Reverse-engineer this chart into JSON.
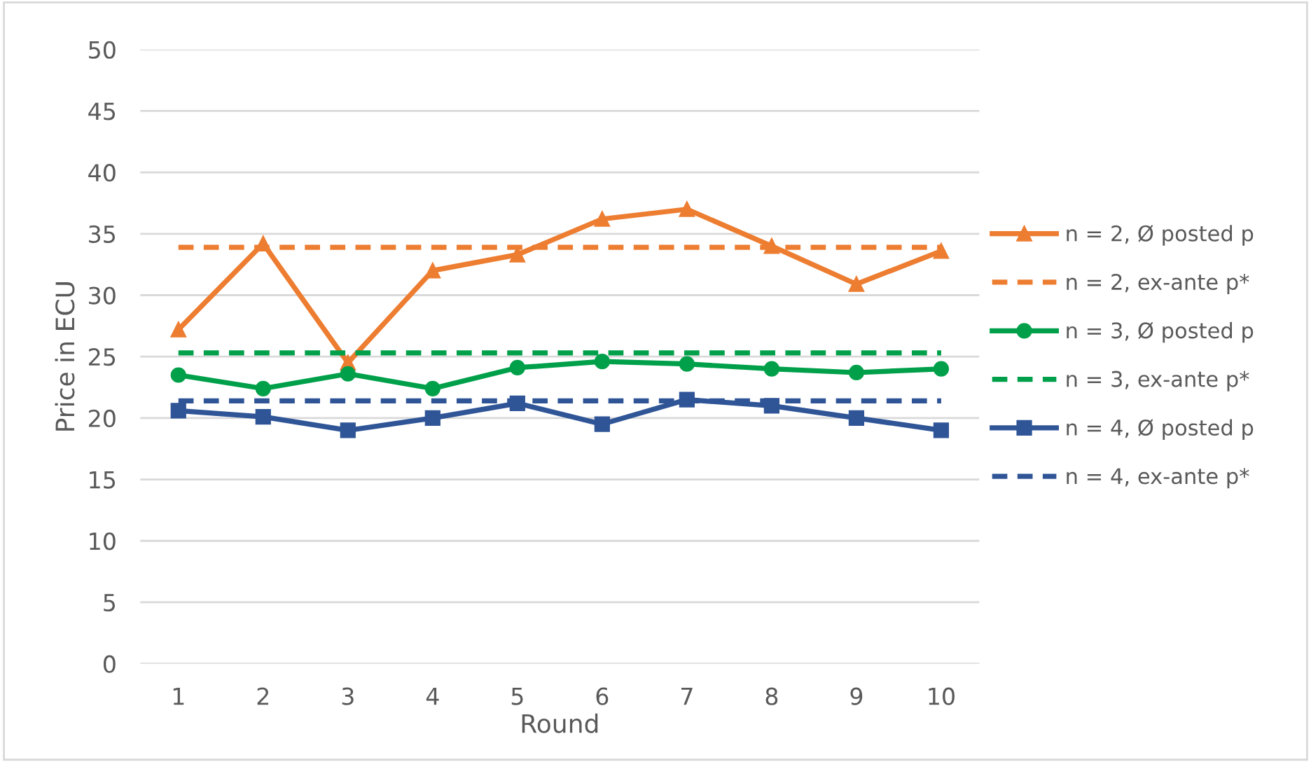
{
  "chart_data": {
    "type": "line",
    "xlabel": "Round",
    "ylabel": "Price in ECU",
    "categories": [
      "1",
      "2",
      "3",
      "4",
      "5",
      "6",
      "7",
      "8",
      "9",
      "10"
    ],
    "ylim": [
      0,
      50
    ],
    "yticks": [
      0,
      5,
      10,
      15,
      20,
      25,
      30,
      35,
      40,
      45,
      50
    ],
    "grid": "y",
    "legend": "right",
    "series": [
      {
        "name": "n = 2, Ø posted p",
        "color": "#ed7d31",
        "marker": "triangle",
        "line_style": "solid",
        "values": [
          27.2,
          34.2,
          24.5,
          32.0,
          33.3,
          36.2,
          37.0,
          34.0,
          30.9,
          33.6
        ]
      },
      {
        "name": "n = 2, ex-ante p*",
        "color": "#ed7d31",
        "marker": "none",
        "line_style": "dashed",
        "values": [
          33.9,
          33.9,
          33.9,
          33.9,
          33.9,
          33.9,
          33.9,
          33.9,
          33.9,
          33.9
        ]
      },
      {
        "name": "n = 3, Ø posted p",
        "color": "#00a04a",
        "marker": "circle",
        "line_style": "solid",
        "values": [
          23.5,
          22.4,
          23.6,
          22.4,
          24.1,
          24.6,
          24.4,
          24.0,
          23.7,
          24.0
        ]
      },
      {
        "name": "n = 3, ex-ante p*",
        "color": "#00a04a",
        "marker": "none",
        "line_style": "dashed",
        "values": [
          25.3,
          25.3,
          25.3,
          25.3,
          25.3,
          25.3,
          25.3,
          25.3,
          25.3,
          25.3
        ]
      },
      {
        "name": "n = 4, Ø posted p",
        "color": "#2f5597",
        "marker": "square",
        "line_style": "solid",
        "values": [
          20.6,
          20.1,
          19.0,
          20.0,
          21.2,
          19.5,
          21.5,
          21.0,
          20.0,
          19.0
        ]
      },
      {
        "name": "n = 4, ex-ante p*",
        "color": "#2f5597",
        "marker": "none",
        "line_style": "dashed",
        "values": [
          21.4,
          21.4,
          21.4,
          21.4,
          21.4,
          21.4,
          21.4,
          21.4,
          21.4,
          21.4
        ]
      }
    ]
  }
}
